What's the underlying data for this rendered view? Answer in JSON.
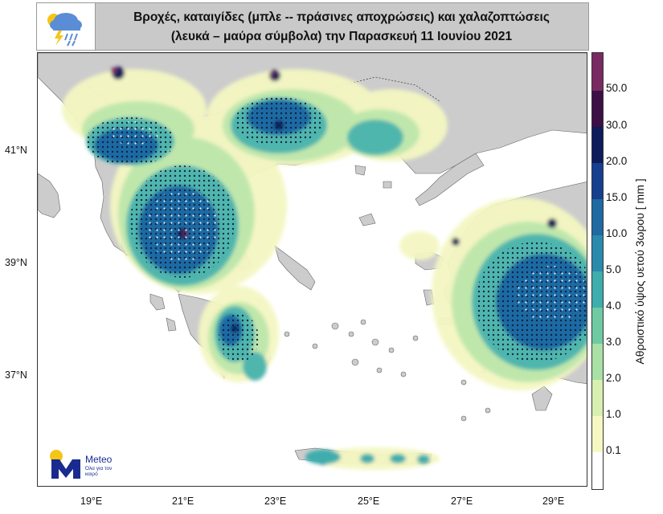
{
  "header": {
    "title_line1": "Βροχές, καταιγίδες (μπλε -- πράσινες αποχρώσεις) και χαλαζοπτώσεις",
    "title_line2": "(λευκά – μαύρα σύμβολα) την Παρασκευή 11 Ιουνίου 2021",
    "icon": "storm-cloud-icon"
  },
  "axes": {
    "lat_labels": [
      "41°N",
      "39°N",
      "37°N"
    ],
    "lon_labels": [
      "19°E",
      "21°E",
      "23°E",
      "25°E",
      "27°E",
      "29°E"
    ]
  },
  "colorbar": {
    "title": "Αθροιστικό ύψος υετού 3ωρου [ mm ]",
    "ticks": [
      "50.0",
      "30.0",
      "20.0",
      "15.0",
      "10.0",
      "5.0",
      "4.0",
      "3.0",
      "2.0",
      "1.0",
      "0.1"
    ],
    "colors": [
      "#ffffff",
      "#f6f8c4",
      "#d7efb0",
      "#a9e0a6",
      "#6fcaa4",
      "#3eadad",
      "#2a8aae",
      "#1f6aa3",
      "#163f8f",
      "#0d1c5a",
      "#3c0f46",
      "#7a2a62"
    ]
  },
  "logo": {
    "brand": "Meteo",
    "tagline": "Όλα για τον καιρό",
    "icon": "meteo-logo-icon"
  },
  "map": {
    "land_color": "#cccccc",
    "sea_color": "#ffffff",
    "border_color": "#555555"
  }
}
